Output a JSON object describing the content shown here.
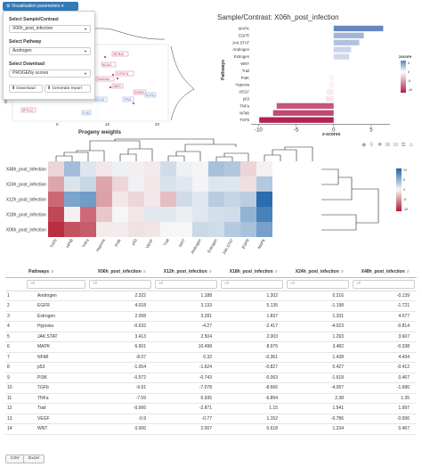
{
  "viz": {
    "button_label": "Visualisation parameters",
    "sample_label": "Select Sample/Contrast",
    "sample_value": "X06h_post_infection",
    "pathway_label": "Select Pathway",
    "pathway_value": "Androgen",
    "download_label": "Select Download",
    "download_value": "PROGENy scores",
    "download_btn": "Download",
    "report_btn": "Generate report"
  },
  "scatter": {
    "title_fragment": "ction",
    "xlabel": "Progeny weights",
    "x_ticks": [
      "0",
      "10",
      "20"
    ],
    "y_tick": "0",
    "point_labels": [
      "ZBTB16",
      "NCAL2",
      "CYP4F11",
      "FAM105A",
      "CBR3",
      "DHRS3",
      "SOX11",
      "SPTLC2",
      "TPM1",
      "CDC42",
      "FLNC"
    ]
  },
  "bar_chart": {
    "title": "Sample/Contrast: X06h_post_infection",
    "ylabel": "Pathways",
    "xlabel": "z-scores",
    "legend_title": "zscore",
    "legend_ticks": [
      "5",
      "0",
      "-5",
      "-10"
    ],
    "x_ticks": [
      "-10",
      "-5",
      "0",
      "5"
    ],
    "accent_pos": "#6d88c0",
    "accent_neg": "#b41f4f"
  },
  "chart_data": {
    "type": "bar",
    "categories": [
      "MAPK",
      "EGFR",
      "JAK.STAT",
      "Androgen",
      "Estrogen",
      "WNT",
      "Trail",
      "PI3K",
      "Hypoxia",
      "VEGF",
      "p53",
      "TNFa",
      "NFkB",
      "TGFb"
    ],
    "values": [
      6.601,
      4.018,
      3.413,
      2.322,
      2.058,
      0.006,
      -0.066,
      -0.572,
      -0.632,
      -0.9,
      -1.054,
      -7.59,
      -8.07,
      -9.91
    ],
    "xlabel": "z-scores",
    "ylabel": "Pathways",
    "xlim": [
      -11,
      7.5
    ]
  },
  "heatmap": {
    "rows": [
      "X48h_post_infection",
      "X24h_post_infection",
      "X12h_post_infection",
      "X18h_post_infection",
      "X06h_post_infection"
    ],
    "cols": [
      "TGFb",
      "NFkB",
      "TNFa",
      "Hypoxia",
      "PI3K",
      "p53",
      "VEGF",
      "Trail",
      "WNT",
      "Androgen",
      "Estrogen",
      "JAK.STAT",
      "EGFR",
      "MAPK"
    ],
    "scale_ticks": [
      "10",
      "5",
      "0",
      "-5",
      "-10"
    ]
  },
  "table": {
    "headers": [
      "Pathways",
      "X06h_post_infection",
      "X12h_post_infection",
      "X18h_post_infection",
      "X24h_post_infection",
      "X48h_post_infection"
    ],
    "filter_placeholder": "All",
    "rows": [
      [
        "1",
        "Androgen",
        "2.322",
        "1.188",
        "1.202",
        "0.216",
        "-0.139"
      ],
      [
        "2",
        "EGFR",
        "4.018",
        "3.133",
        "5.135",
        "-1.198",
        "-1.721"
      ],
      [
        "3",
        "Estrogen",
        "2.058",
        "3.281",
        "1.837",
        "1.331",
        "4.077"
      ],
      [
        "4",
        "Hypoxia",
        "-0.632",
        "-4.27",
        "-2.417",
        "-4.023",
        "-0.814"
      ],
      [
        "5",
        "JAK.STAT",
        "3.413",
        "2.504",
        "2.003",
        "1.293",
        "3.607"
      ],
      [
        "6",
        "MAPK",
        "6.601",
        "10.498",
        "8.975",
        "3.482",
        "-0.338"
      ],
      [
        "7",
        "NFkB",
        "-8.07",
        "6.32",
        "-0.361",
        "1.438",
        "4.434"
      ],
      [
        "8",
        "p53",
        "-1.054",
        "-1.624",
        "-0.827",
        "0.427",
        "-0.412"
      ],
      [
        "9",
        "PI3K",
        "-0.572",
        "-0.743",
        "-0.063",
        "-1.618",
        "0.467"
      ],
      [
        "10",
        "TGFb",
        "-9.91",
        "-7.078",
        "-8.666",
        "-4.067",
        "-1.686"
      ],
      [
        "11",
        "TNFa",
        "-7.59",
        "6.935",
        "-6.894",
        "2.38",
        "1.35"
      ],
      [
        "12",
        "Trail",
        "-0.066",
        "-2.871",
        "1.15",
        "1.541",
        "1.997"
      ],
      [
        "13",
        "VEGF",
        "-0.9",
        "-0.77",
        "1.152",
        "-0.786",
        "-0.696"
      ],
      [
        "14",
        "WNT",
        "0.006",
        "2.007",
        "0.618",
        "1.234",
        "0.467"
      ]
    ]
  },
  "export": {
    "csv": "CSV",
    "excel": "Excel"
  }
}
